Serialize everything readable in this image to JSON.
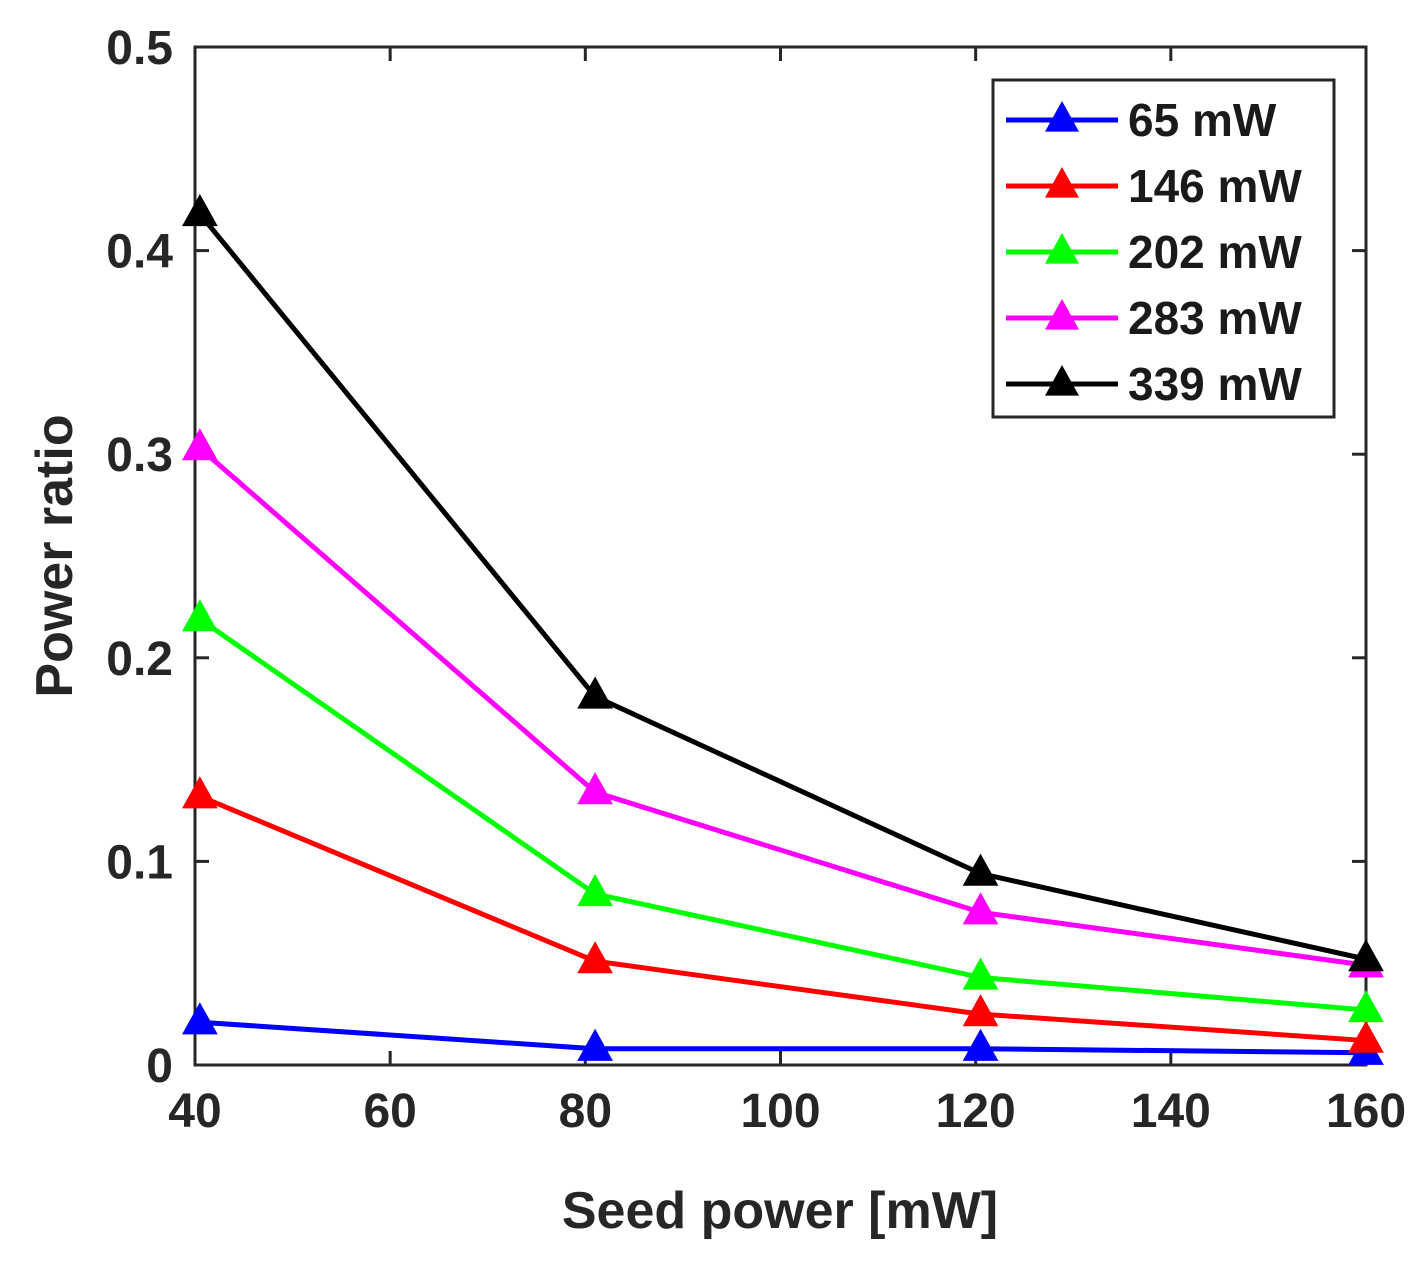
{
  "chart_data": {
    "type": "line",
    "title": "",
    "xlabel": "Seed power [mW]",
    "ylabel": "Power ratio",
    "xlim": [
      40,
      160
    ],
    "ylim": [
      0,
      0.5
    ],
    "xticks": [
      40,
      60,
      80,
      100,
      120,
      140,
      160
    ],
    "yticks": [
      0,
      0.1,
      0.2,
      0.3,
      0.4,
      0.5
    ],
    "xtick_labels": [
      "40",
      "60",
      "80",
      "100",
      "120",
      "140",
      "160"
    ],
    "ytick_labels": [
      "0",
      "0.1",
      "0.2",
      "0.3",
      "0.4",
      "0.5"
    ],
    "grid": false,
    "legend_position": "top-right",
    "marker": "triangle",
    "x": [
      40.5,
      81,
      120.5,
      160
    ],
    "series": [
      {
        "name": "65 mW",
        "color": "#0000ff",
        "values": [
          0.021,
          0.008,
          0.008,
          0.006
        ]
      },
      {
        "name": "146 mW",
        "color": "#ff0000",
        "values": [
          0.132,
          0.051,
          0.025,
          0.012
        ]
      },
      {
        "name": "202 mW",
        "color": "#00ff00",
        "values": [
          0.219,
          0.084,
          0.043,
          0.027
        ]
      },
      {
        "name": "283 mW",
        "color": "#ff00ff",
        "values": [
          0.303,
          0.134,
          0.075,
          0.049
        ]
      },
      {
        "name": "339 mW",
        "color": "#000000",
        "values": [
          0.418,
          0.181,
          0.094,
          0.052
        ]
      }
    ]
  }
}
